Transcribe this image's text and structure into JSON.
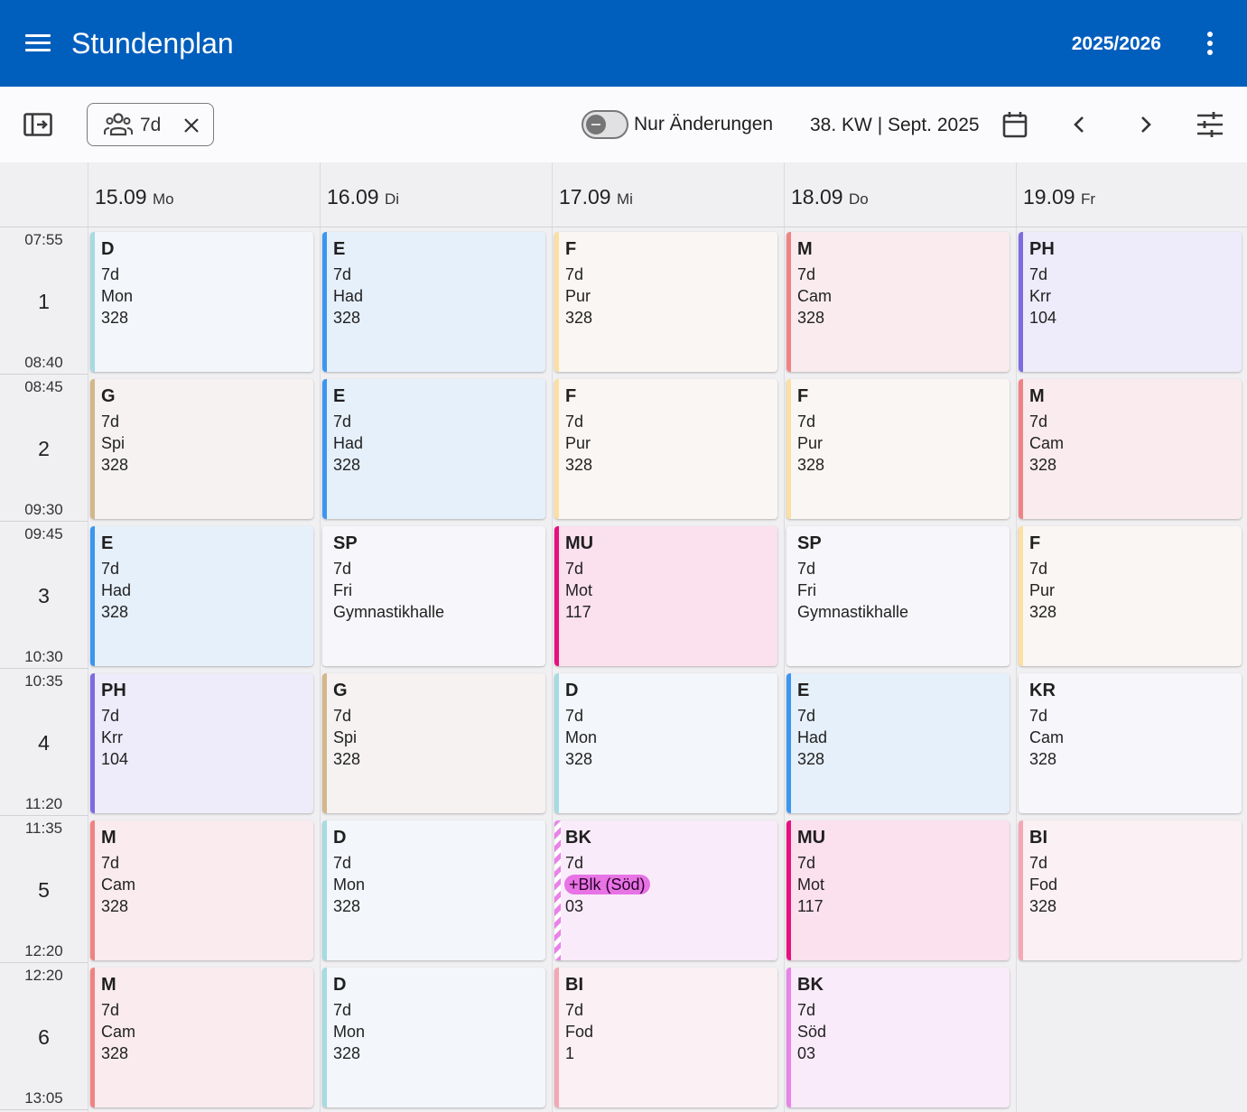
{
  "app": {
    "title": "Stundenplan",
    "school_year": "2025/2026"
  },
  "toolbar": {
    "filter_chip": "7d",
    "toggle_label": "Nur Änderungen",
    "toggle_on": false,
    "week_label": "38. KW | Sept. 2025"
  },
  "days": [
    {
      "date": "15.09",
      "weekday": "Mo"
    },
    {
      "date": "16.09",
      "weekday": "Di"
    },
    {
      "date": "17.09",
      "weekday": "Mi"
    },
    {
      "date": "18.09",
      "weekday": "Do"
    },
    {
      "date": "19.09",
      "weekday": "Fr"
    }
  ],
  "periods": [
    {
      "number": "1",
      "start": "07:55",
      "end": "08:40"
    },
    {
      "number": "2",
      "start": "08:45",
      "end": "09:30"
    },
    {
      "number": "3",
      "start": "09:45",
      "end": "10:30"
    },
    {
      "number": "4",
      "start": "10:35",
      "end": "11:20"
    },
    {
      "number": "5",
      "start": "11:35",
      "end": "12:20"
    },
    {
      "number": "6",
      "start": "12:20",
      "end": "13:05"
    }
  ],
  "subject_colors": {
    "D": {
      "bg": "#f3f6fa",
      "bar": "#a6dbe2"
    },
    "E": {
      "bg": "#e6f0fb",
      "bar": "#3c96f0"
    },
    "F": {
      "bg": "#faf6f3",
      "bar": "#fbe0a3"
    },
    "M": {
      "bg": "#f9ebee",
      "bar": "#ef8383"
    },
    "PH": {
      "bg": "#eeebfa",
      "bar": "#7c6ce0"
    },
    "G": {
      "bg": "#f6f2f2",
      "bar": "#d3b78a"
    },
    "SP": {
      "bg": "#f7f6fb",
      "bar": "#f7f6fb"
    },
    "MU": {
      "bg": "#fbe0ee",
      "bar": "#ea0f7e"
    },
    "KR": {
      "bg": "#f7f6fb",
      "bar": "#f7f6fb"
    },
    "BK": {
      "bg": "#f9ebfa",
      "bar": "#ea82ea"
    },
    "BI": {
      "bg": "#fbf0f3",
      "bar": "#f4a7b4"
    }
  },
  "lessons": [
    [
      {
        "subject": "D",
        "class": "7d",
        "teacher": "Mon",
        "room": "328"
      },
      {
        "subject": "G",
        "class": "7d",
        "teacher": "Spi",
        "room": "328"
      },
      {
        "subject": "E",
        "class": "7d",
        "teacher": "Had",
        "room": "328"
      },
      {
        "subject": "PH",
        "class": "7d",
        "teacher": "Krr",
        "room": "104"
      },
      {
        "subject": "M",
        "class": "7d",
        "teacher": "Cam",
        "room": "328"
      },
      {
        "subject": "M",
        "class": "7d",
        "teacher": "Cam",
        "room": "328"
      }
    ],
    [
      {
        "subject": "E",
        "class": "7d",
        "teacher": "Had",
        "room": "328"
      },
      {
        "subject": "E",
        "class": "7d",
        "teacher": "Had",
        "room": "328"
      },
      {
        "subject": "SP",
        "class": "7d",
        "teacher": "Fri",
        "room": "Gymnastikhalle"
      },
      {
        "subject": "G",
        "class": "7d",
        "teacher": "Spi",
        "room": "328"
      },
      {
        "subject": "D",
        "class": "7d",
        "teacher": "Mon",
        "room": "328"
      },
      {
        "subject": "D",
        "class": "7d",
        "teacher": "Mon",
        "room": "328"
      }
    ],
    [
      {
        "subject": "F",
        "class": "7d",
        "teacher": "Pur",
        "room": "328"
      },
      {
        "subject": "F",
        "class": "7d",
        "teacher": "Pur",
        "room": "328"
      },
      {
        "subject": "MU",
        "class": "7d",
        "teacher": "Mot",
        "room": "117"
      },
      {
        "subject": "D",
        "class": "7d",
        "teacher": "Mon",
        "room": "328"
      },
      {
        "subject": "BK",
        "class": "7d",
        "teacher": "+Blk (Söd)",
        "room": "03",
        "changed": true
      },
      {
        "subject": "BI",
        "class": "7d",
        "teacher": "Fod",
        "room": "1"
      }
    ],
    [
      {
        "subject": "M",
        "class": "7d",
        "teacher": "Cam",
        "room": "328"
      },
      {
        "subject": "F",
        "class": "7d",
        "teacher": "Pur",
        "room": "328"
      },
      {
        "subject": "SP",
        "class": "7d",
        "teacher": "Fri",
        "room": "Gymnastikhalle"
      },
      {
        "subject": "E",
        "class": "7d",
        "teacher": "Had",
        "room": "328"
      },
      {
        "subject": "MU",
        "class": "7d",
        "teacher": "Mot",
        "room": "117"
      },
      {
        "subject": "BK",
        "class": "7d",
        "teacher": "Söd",
        "room": "03"
      }
    ],
    [
      {
        "subject": "PH",
        "class": "7d",
        "teacher": "Krr",
        "room": "104"
      },
      {
        "subject": "M",
        "class": "7d",
        "teacher": "Cam",
        "room": "328"
      },
      {
        "subject": "F",
        "class": "7d",
        "teacher": "Pur",
        "room": "328"
      },
      {
        "subject": "KR",
        "class": "7d",
        "teacher": "Cam",
        "room": "328"
      },
      {
        "subject": "BI",
        "class": "7d",
        "teacher": "Fod",
        "room": "328"
      },
      null
    ]
  ]
}
